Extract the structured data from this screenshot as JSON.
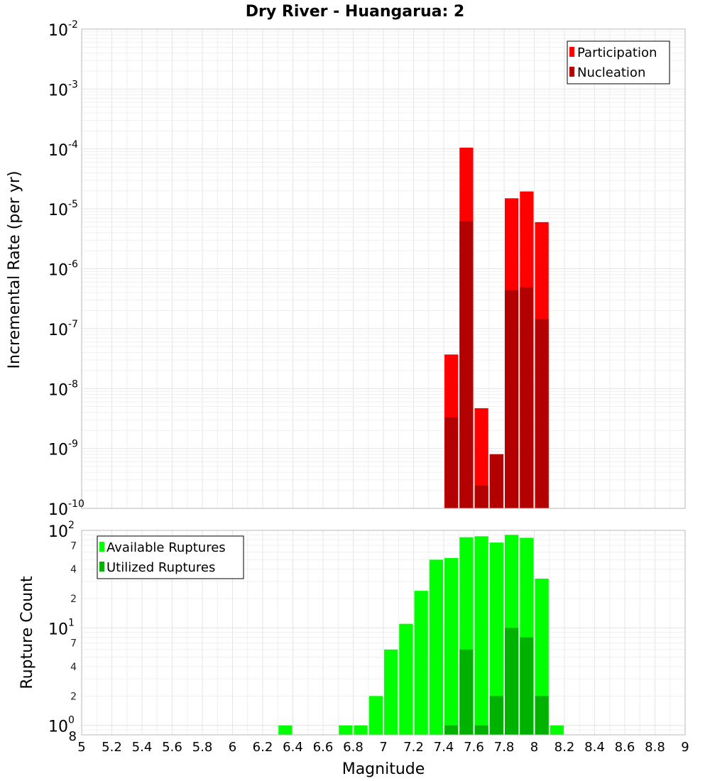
{
  "chart_data": [
    {
      "type": "bar",
      "title": "Dry River - Huangarua: 2",
      "ylabel": "Incremental Rate (per yr)",
      "xlabel": "",
      "y_scale": "log",
      "ylim": [
        1e-10,
        0.01
      ],
      "xlim": [
        5,
        9
      ],
      "bar_width": 0.1,
      "y_tick_labels": [
        {
          "base": "10",
          "exp": "-10"
        },
        {
          "base": "10",
          "exp": "-9"
        },
        {
          "base": "10",
          "exp": "-8"
        },
        {
          "base": "10",
          "exp": "-7"
        },
        {
          "base": "10",
          "exp": "-6"
        },
        {
          "base": "10",
          "exp": "-5"
        },
        {
          "base": "10",
          "exp": "-4"
        },
        {
          "base": "10",
          "exp": "-3"
        },
        {
          "base": "10",
          "exp": "-2"
        }
      ],
      "legend_position": "top-right",
      "series": [
        {
          "name": "Participation",
          "color": "#ff0000",
          "x": [
            7.45,
            7.55,
            7.65,
            7.75,
            7.85,
            7.95,
            8.05
          ],
          "values": [
            3.7e-08,
            0.000105,
            4.7e-09,
            8e-10,
            1.5e-05,
            1.95e-05,
            6e-06
          ]
        },
        {
          "name": "Nucleation",
          "color": "#b30000",
          "x": [
            7.45,
            7.55,
            7.65,
            7.75,
            7.85,
            7.95,
            8.05
          ],
          "values": [
            3.3e-09,
            6.2e-06,
            2.4e-10,
            8e-10,
            4.4e-07,
            4.9e-07,
            1.45e-07
          ]
        }
      ]
    },
    {
      "type": "bar",
      "title": "",
      "ylabel": "Rupture Count",
      "xlabel": "Magnitude",
      "y_scale": "log",
      "ylim": [
        0.8,
        100
      ],
      "xlim": [
        5,
        9
      ],
      "bar_width": 0.1,
      "x_ticks": [
        "5",
        "5.2",
        "5.4",
        "5.6",
        "5.8",
        "6",
        "6.2",
        "6.4",
        "6.6",
        "6.8",
        "7",
        "7.2",
        "7.4",
        "7.6",
        "7.8",
        "8",
        "8.2",
        "8.4",
        "8.6",
        "8.8",
        "9"
      ],
      "y_major_ticks": [
        {
          "value": 1,
          "base": "10",
          "exp": "0"
        },
        {
          "value": 10,
          "base": "10",
          "exp": "1"
        },
        {
          "value": 100,
          "base": "10",
          "exp": "2"
        }
      ],
      "y_minor_ticks": [
        {
          "value": 0.8,
          "label": "8"
        },
        {
          "value": 2,
          "label": "2"
        },
        {
          "value": 4,
          "label": "4"
        },
        {
          "value": 7,
          "label": "7"
        },
        {
          "value": 20,
          "label": "2"
        },
        {
          "value": 40,
          "label": "4"
        },
        {
          "value": 70,
          "label": "7"
        }
      ],
      "legend_position": "top-left",
      "series": [
        {
          "name": "Available Ruptures",
          "color": "#00ff00",
          "x": [
            6.35,
            6.75,
            6.85,
            6.95,
            7.05,
            7.15,
            7.25,
            7.35,
            7.45,
            7.55,
            7.65,
            7.75,
            7.85,
            7.95,
            8.05,
            8.15
          ],
          "values": [
            1,
            1,
            1,
            2,
            6,
            11,
            24,
            50,
            52,
            85,
            87,
            75,
            90,
            84,
            32,
            1
          ]
        },
        {
          "name": "Utilized Ruptures",
          "color": "#00b200",
          "x": [
            7.45,
            7.55,
            7.65,
            7.75,
            7.85,
            7.95,
            8.05
          ],
          "values": [
            1,
            6,
            1,
            2,
            10,
            8,
            2
          ]
        }
      ]
    }
  ]
}
